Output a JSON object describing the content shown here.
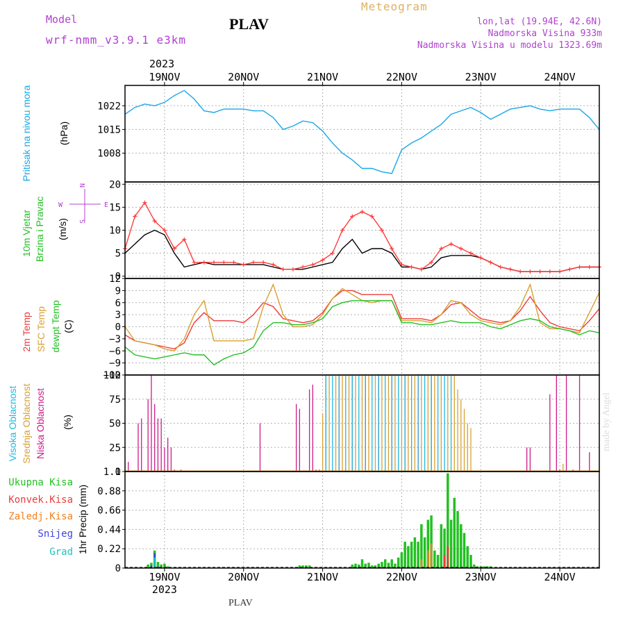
{
  "header": {
    "model_label": "Model",
    "model_name": "wrf-nmm_v3.9.1 e3km",
    "station": "PLAV",
    "product": "Meteogram",
    "coords": "lon,lat (19.94E, 42.6N)",
    "elevation": "Nadmorska Visina 933m",
    "model_elevation": "Nadmorska Visina u modelu 1323.69m",
    "year": "2023",
    "footer_station": "PLAV",
    "credit": "made by Angel"
  },
  "colors": {
    "pressure": "#1aa7e8",
    "wind_speed": "#000000",
    "wind_gust": "#ff3b3b",
    "temp_2m": "#ee3b3b",
    "temp_sfc": "#d9a030",
    "temp_dew": "#22c022",
    "cloud_high": "#22b8e0",
    "cloud_mid": "#d8a030",
    "cloud_low": "#cc1a8a",
    "precip_total": "#22c022",
    "precip_conv": "#ee3b3b",
    "precip_frz": "#f08020",
    "precip_snow": "#4040e0",
    "precip_hail": "#20c0c0",
    "model_label": "#b040d0",
    "product": "#e0b060"
  },
  "chart_data": [
    {
      "type": "line",
      "title": "",
      "ylabel_name": "Pritisak na nivou mora",
      "ylabel_unit": "(hPa)",
      "yticks": [
        "1022",
        "1015",
        "1008"
      ],
      "ylim": [
        999.5,
        1028
      ],
      "x_unit": "hours from 2023-11-18 12:00 UTC",
      "xlim": [
        0,
        144
      ],
      "series": [
        {
          "name": "Pritisak na nivou mora",
          "x": [
            0,
            3,
            6,
            9,
            12,
            15,
            18,
            21,
            24,
            27,
            30,
            33,
            36,
            39,
            42,
            45,
            48,
            51,
            54,
            57,
            60,
            63,
            66,
            69,
            72,
            75,
            78,
            81,
            84,
            87,
            90,
            93,
            96,
            99,
            102,
            105,
            108,
            111,
            114,
            117,
            120,
            123,
            126,
            129,
            132,
            135,
            138,
            141,
            144
          ],
          "values": [
            1019.5,
            1021.5,
            1022.5,
            1022,
            1023,
            1025,
            1026.5,
            1024,
            1020.5,
            1020,
            1021,
            1021,
            1021,
            1020.5,
            1020.5,
            1018.5,
            1015,
            1016,
            1017.5,
            1017,
            1014.5,
            1011,
            1008,
            1006,
            1003.5,
            1003.5,
            1002.5,
            1002,
            1009,
            1011,
            1012.5,
            1014.5,
            1016.5,
            1019.5,
            1020.5,
            1021.5,
            1020,
            1018,
            1019.5,
            1021,
            1021.5,
            1022,
            1021,
            1020.5,
            1021,
            1021,
            1021,
            1018.5,
            1015
          ]
        }
      ]
    },
    {
      "type": "line",
      "title": "",
      "ylabel_name": "10m Vjetar",
      "ylabel_name2": "Brzina i Pravac",
      "ylabel_unit": "(m/s)",
      "compass": {
        "n": "N",
        "s": "S",
        "e": "E",
        "w": "W"
      },
      "yticks": [
        "20",
        "15",
        "10",
        "5",
        "0"
      ],
      "ylim": [
        -0.5,
        20.5
      ],
      "xlim": [
        0,
        144
      ],
      "series": [
        {
          "name": "Brzina",
          "x": [
            0,
            3,
            6,
            9,
            12,
            15,
            18,
            21,
            24,
            27,
            30,
            33,
            36,
            39,
            42,
            45,
            48,
            51,
            54,
            57,
            60,
            63,
            66,
            69,
            72,
            75,
            78,
            81,
            84,
            87,
            90,
            93,
            96,
            99,
            102,
            105,
            108,
            111,
            114,
            117,
            120,
            123,
            126,
            129,
            132,
            135,
            138,
            141,
            144
          ],
          "values": [
            5,
            7,
            9,
            10,
            9,
            5,
            2,
            2.5,
            3,
            2.5,
            2.5,
            2.5,
            2.5,
            2.5,
            2.5,
            2,
            1.5,
            1.5,
            1.5,
            2,
            2.5,
            3,
            6,
            8,
            5,
            6,
            6,
            5,
            2,
            2,
            1.5,
            2,
            4,
            4.5,
            4.5,
            4.5,
            4,
            3,
            2,
            1.5,
            1,
            1,
            1,
            1,
            1,
            1.5,
            2,
            2,
            2
          ]
        },
        {
          "name": "Udari",
          "x": [
            0,
            3,
            6,
            9,
            12,
            15,
            18,
            21,
            24,
            27,
            30,
            33,
            36,
            39,
            42,
            45,
            48,
            51,
            54,
            57,
            60,
            63,
            66,
            69,
            72,
            75,
            78,
            81,
            84,
            87,
            90,
            93,
            96,
            99,
            102,
            105,
            108,
            111,
            114,
            117,
            120,
            123,
            126,
            129,
            132,
            135,
            138,
            141,
            144
          ],
          "values": [
            6,
            13,
            16,
            12,
            10,
            6,
            8,
            3,
            3,
            3,
            3,
            3,
            2.5,
            3,
            3,
            2.5,
            1.5,
            1.5,
            2,
            2.5,
            3.5,
            5,
            10,
            13,
            14,
            13,
            10,
            6,
            2.5,
            2,
            1.5,
            3,
            6,
            7,
            6,
            5,
            4,
            3,
            2,
            1.5,
            1,
            1,
            1,
            1,
            1,
            1.5,
            2,
            2,
            2
          ]
        }
      ]
    },
    {
      "type": "line",
      "title": "",
      "ylabel_name": "2m Temp",
      "ylabel_name2": "SFC Temp",
      "ylabel_name3": "dewpt Temp",
      "ylabel_unit": "(C)",
      "yticks": [
        "12",
        "9",
        "6",
        "3",
        "0",
        "−3",
        "−6",
        "−9",
        "−12"
      ],
      "ylim": [
        -12,
        12
      ],
      "xlim": [
        0,
        144
      ],
      "series": [
        {
          "name": "2m Temp",
          "x": [
            0,
            3,
            6,
            9,
            12,
            15,
            18,
            21,
            24,
            27,
            30,
            33,
            36,
            39,
            42,
            45,
            48,
            51,
            54,
            57,
            60,
            63,
            66,
            69,
            72,
            75,
            78,
            81,
            84,
            87,
            90,
            93,
            96,
            99,
            102,
            105,
            108,
            111,
            114,
            117,
            120,
            123,
            126,
            129,
            132,
            135,
            138,
            141,
            144
          ],
          "values": [
            -2,
            -3.5,
            -4,
            -4.5,
            -5,
            -5.5,
            -4,
            1,
            3.5,
            1.5,
            1.5,
            1.5,
            1,
            3,
            6,
            5,
            2,
            1.5,
            1,
            1.5,
            3.5,
            7,
            9,
            9,
            8,
            8,
            8,
            8,
            2,
            2,
            2,
            1.5,
            3,
            5.5,
            6,
            4,
            2,
            1.5,
            1,
            1.5,
            4,
            7.5,
            4,
            1,
            0,
            -0.5,
            -1,
            1.5,
            4.5
          ]
        },
        {
          "name": "SFC Temp",
          "x": [
            0,
            3,
            6,
            9,
            12,
            15,
            18,
            21,
            24,
            27,
            30,
            33,
            36,
            39,
            42,
            45,
            48,
            51,
            54,
            57,
            60,
            63,
            66,
            69,
            72,
            75,
            78,
            81,
            84,
            87,
            90,
            93,
            96,
            99,
            102,
            105,
            108,
            111,
            114,
            117,
            120,
            123,
            126,
            129,
            132,
            135,
            138,
            141,
            144
          ],
          "values": [
            0,
            -3.5,
            -4,
            -4.5,
            -5.5,
            -6,
            -3,
            3,
            6.5,
            -3.5,
            -3.5,
            -3.5,
            -3.5,
            -3,
            5,
            10.5,
            3,
            0,
            0,
            0.5,
            3,
            7,
            9.5,
            8,
            6.5,
            6,
            6.5,
            6.5,
            1.5,
            1.5,
            1.5,
            1,
            3,
            6.5,
            6,
            3,
            1.5,
            1,
            0.5,
            1.5,
            5,
            10.5,
            1,
            -0.5,
            -0.5,
            -1,
            -1.5,
            3.5,
            8.5
          ]
        },
        {
          "name": "dewpt Temp",
          "x": [
            0,
            3,
            6,
            9,
            12,
            15,
            18,
            21,
            24,
            27,
            30,
            33,
            36,
            39,
            42,
            45,
            48,
            51,
            54,
            57,
            60,
            63,
            66,
            69,
            72,
            75,
            78,
            81,
            84,
            87,
            90,
            93,
            96,
            99,
            102,
            105,
            108,
            111,
            114,
            117,
            120,
            123,
            126,
            129,
            132,
            135,
            138,
            141,
            144
          ],
          "values": [
            -5,
            -7,
            -7.5,
            -8,
            -7.5,
            -7,
            -6.5,
            -7,
            -7,
            -9.5,
            -8,
            -7,
            -6.5,
            -5,
            -1,
            1,
            1,
            0.5,
            0.5,
            1,
            2,
            5,
            6,
            6.5,
            6.5,
            6.5,
            6.5,
            6.5,
            1,
            1,
            0.5,
            0.5,
            1,
            1.5,
            1,
            1,
            1,
            0,
            -0.5,
            0.5,
            1.5,
            2,
            1.5,
            0,
            -0.5,
            -1,
            -2,
            -1,
            -1.5
          ]
        }
      ]
    },
    {
      "type": "bar",
      "title": "",
      "ylabel_name": "Visoka Oblacnost",
      "ylabel_name2": "Srednja Oblacnost",
      "ylabel_name3": "Niska Oblacnost",
      "ylabel_unit": "(%)",
      "yticks": [
        "100",
        "75",
        "50",
        "25",
        "0"
      ],
      "ylim": [
        0,
        100
      ],
      "xlim": [
        0,
        144
      ],
      "series": [
        {
          "name": "Niska Oblacnost",
          "x": [
            1,
            4,
            5,
            7,
            8,
            9,
            10,
            11,
            12,
            13,
            14,
            15,
            17,
            41,
            52,
            53,
            56,
            57,
            58,
            59,
            61,
            63,
            65,
            67,
            69,
            71,
            73,
            75,
            77,
            79,
            81,
            83,
            85,
            87,
            89,
            91,
            93,
            95,
            122,
            123,
            129,
            131,
            132,
            134,
            136,
            138,
            141
          ],
          "values": [
            10,
            50,
            55,
            75,
            100,
            70,
            55,
            55,
            25,
            35,
            25,
            2,
            2,
            50,
            70,
            65,
            85,
            90,
            2,
            2,
            100,
            2,
            100,
            2,
            100,
            2,
            100,
            2,
            100,
            2,
            100,
            2,
            100,
            2,
            100,
            2,
            100,
            2,
            25,
            25,
            80,
            100,
            2,
            100,
            2,
            100,
            20
          ]
        },
        {
          "name": "Srednja Oblacnost",
          "x": [
            60,
            62,
            64,
            66,
            68,
            70,
            72,
            74,
            76,
            78,
            80,
            82,
            84,
            86,
            88,
            90,
            92,
            94,
            96,
            98,
            100,
            101,
            102,
            103,
            104,
            105,
            133
          ],
          "values": [
            60,
            100,
            100,
            100,
            100,
            100,
            100,
            100,
            100,
            100,
            100,
            100,
            100,
            100,
            100,
            100,
            100,
            100,
            100,
            100,
            100,
            85,
            75,
            65,
            50,
            45,
            8
          ]
        },
        {
          "name": "Visoka Oblacnost",
          "x": [
            61,
            63,
            65,
            67,
            69,
            71,
            73,
            75,
            77,
            79,
            81,
            83,
            85,
            87,
            89,
            91,
            93,
            95,
            97,
            99
          ],
          "values": [
            100,
            100,
            100,
            100,
            100,
            100,
            100,
            100,
            100,
            100,
            100,
            100,
            100,
            100,
            100,
            100,
            100,
            100,
            100,
            100
          ]
        }
      ]
    },
    {
      "type": "bar",
      "title": "",
      "ylabel_name": "1hr Precip (mm)",
      "legend": [
        "Ukupna Kisa",
        "Konvek.Kisa",
        "Zaledj.Kisa",
        "Snijeg",
        "Grad"
      ],
      "yticks": [
        "1.1",
        "0.88",
        "0.66",
        "0.44",
        "0.22",
        "0"
      ],
      "ylim": [
        0,
        1.1
      ],
      "xlim": [
        0,
        144
      ],
      "series": [
        {
          "name": "Ukupna Kisa",
          "x": [
            7,
            8,
            9,
            10,
            11,
            12,
            13,
            53,
            54,
            55,
            56,
            69,
            70,
            71,
            72,
            73,
            74,
            75,
            76,
            77,
            78,
            79,
            80,
            81,
            82,
            83,
            84,
            85,
            86,
            87,
            88,
            89,
            90,
            91,
            92,
            93,
            94,
            95,
            96,
            97,
            98,
            99,
            100,
            101,
            102,
            103,
            104,
            105,
            106,
            107,
            108,
            109,
            110,
            111
          ],
          "values": [
            0.04,
            0.06,
            0.2,
            0.07,
            0.04,
            0.05,
            0.02,
            0.03,
            0.03,
            0.03,
            0.03,
            0.04,
            0.05,
            0.04,
            0.1,
            0.05,
            0.06,
            0.03,
            0.03,
            0.05,
            0.07,
            0.1,
            0.06,
            0.1,
            0.05,
            0.12,
            0.18,
            0.3,
            0.25,
            0.3,
            0.35,
            0.3,
            0.5,
            0.35,
            0.55,
            0.6,
            0.2,
            0.15,
            0.5,
            0.45,
            1.08,
            0.55,
            0.8,
            0.65,
            0.5,
            0.4,
            0.25,
            0.15,
            0.04,
            0.02,
            0.02,
            0.02,
            0.02,
            0.02
          ]
        },
        {
          "name": "Konvek.Kisa",
          "x": [
            9,
            97,
            98
          ],
          "values": [
            0.04,
            0.15,
            0.25
          ]
        },
        {
          "name": "Zaledj.Kisa",
          "x": [
            90,
            92,
            93
          ],
          "values": [
            0.1,
            0.2,
            0.28
          ]
        },
        {
          "name": "Snijeg",
          "x": [
            8,
            9,
            10
          ],
          "values": [
            0.03,
            0.17,
            0.02
          ]
        },
        {
          "name": "Grad",
          "x": [
            9
          ],
          "values": [
            0.12
          ]
        }
      ]
    }
  ],
  "x_axis": {
    "x": [
      12,
      36,
      60,
      84,
      108,
      132
    ],
    "labels": [
      "19NOV",
      "20NOV",
      "21NOV",
      "22NOV",
      "23NOV",
      "24NOV"
    ],
    "year": "2023"
  }
}
